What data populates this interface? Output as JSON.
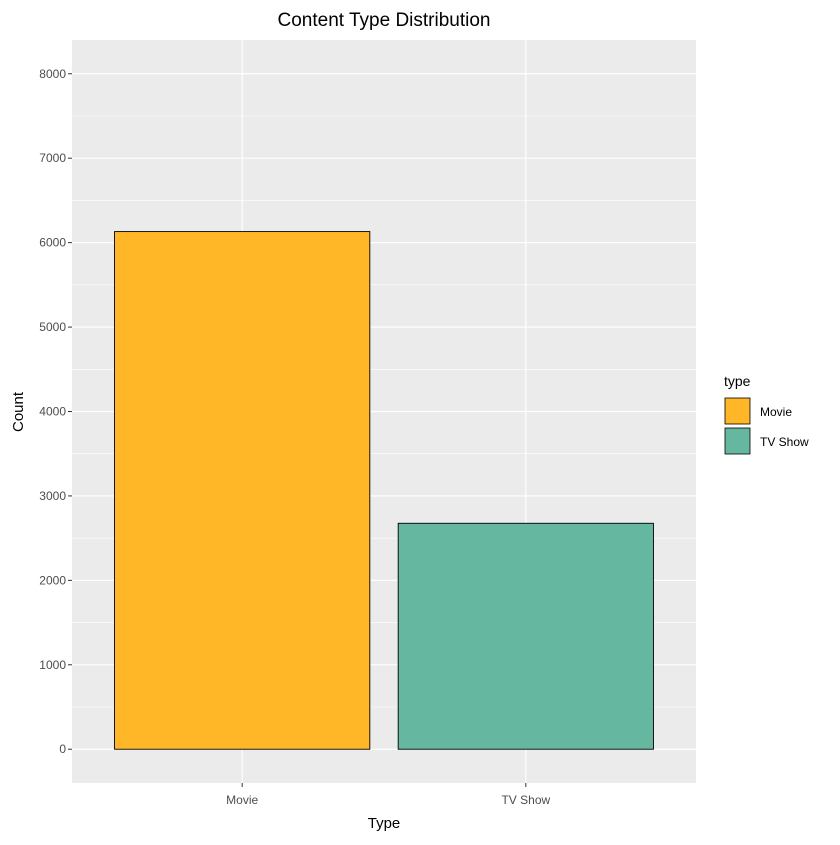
{
  "chart_data": {
    "type": "bar",
    "title": "Content Type Distribution",
    "xlabel": "Type",
    "ylabel": "Count",
    "categories": [
      "Movie",
      "TV Show"
    ],
    "values": [
      6131,
      2676
    ],
    "colors": [
      "#FFB627",
      "#66B79F"
    ],
    "bar_outline_color": "#000000",
    "panel_background": "#EBEBEB",
    "grid": true,
    "grid_color": "#FFFFFF",
    "ylim": [
      -400,
      8400
    ],
    "yticks": [
      0,
      1000,
      2000,
      3000,
      4000,
      5000,
      6000,
      7000,
      8000
    ],
    "ytick_labels": [
      "0",
      "1000",
      "2000",
      "3000",
      "4000",
      "5000",
      "6000",
      "7000",
      "8000"
    ],
    "legend": {
      "title": "type",
      "placement": "right",
      "entries": [
        "Movie",
        "TV Show"
      ]
    }
  }
}
